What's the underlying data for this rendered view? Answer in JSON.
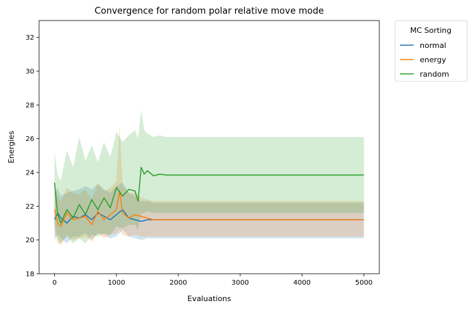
{
  "chart_data": {
    "type": "line",
    "title": "Convergence for random polar relative move mode",
    "xlabel": "Evaluations",
    "ylabel": "Energies",
    "xlim": [
      -250,
      5250
    ],
    "ylim": [
      18,
      33
    ],
    "xticks": [
      0,
      1000,
      2000,
      3000,
      4000,
      5000
    ],
    "yticks": [
      18,
      20,
      22,
      24,
      26,
      28,
      30,
      32
    ],
    "grid": false,
    "legend": {
      "title": "MC Sorting",
      "placement": "outside-top-right"
    },
    "series": [
      {
        "name": "normal",
        "color": "#1f77b4",
        "x": [
          0,
          50,
          100,
          200,
          300,
          400,
          500,
          600,
          700,
          800,
          900,
          1000,
          1100,
          1200,
          1300,
          1400,
          1500,
          1600,
          1800,
          2000,
          3000,
          4000,
          5000
        ],
        "values": [
          21.2,
          21.6,
          21.3,
          21.0,
          21.4,
          21.3,
          21.5,
          21.2,
          21.6,
          21.4,
          21.2,
          21.5,
          21.8,
          21.3,
          21.2,
          21.1,
          21.2,
          21.2,
          21.2,
          21.2,
          21.2,
          21.2,
          21.2
        ],
        "lower": [
          20.0,
          20.3,
          20.1,
          19.8,
          20.2,
          20.2,
          20.4,
          20.0,
          20.4,
          20.3,
          20.1,
          20.2,
          20.6,
          20.2,
          20.1,
          20.0,
          20.1,
          20.1,
          20.1,
          20.1,
          20.1,
          20.1,
          20.1
        ],
        "upper": [
          22.8,
          23.1,
          22.6,
          22.8,
          22.9,
          23.0,
          23.2,
          23.0,
          23.3,
          23.0,
          22.8,
          23.2,
          23.4,
          22.8,
          22.6,
          22.3,
          22.3,
          22.2,
          22.2,
          22.2,
          22.2,
          22.2,
          22.2
        ]
      },
      {
        "name": "energy",
        "color": "#ff7f0e",
        "x": [
          0,
          50,
          100,
          200,
          300,
          400,
          500,
          600,
          700,
          800,
          900,
          1000,
          1050,
          1100,
          1200,
          1300,
          1400,
          1500,
          1600,
          1800,
          2000,
          3000,
          4000,
          5000
        ],
        "values": [
          21.8,
          21.0,
          20.8,
          21.6,
          21.2,
          21.3,
          21.4,
          20.9,
          21.7,
          21.2,
          21.5,
          21.8,
          22.9,
          21.6,
          21.3,
          21.5,
          21.4,
          21.3,
          21.2,
          21.2,
          21.2,
          21.2,
          21.2,
          21.2
        ],
        "lower": [
          20.5,
          19.8,
          19.7,
          20.3,
          20.0,
          20.1,
          20.2,
          19.9,
          20.4,
          20.1,
          20.3,
          20.4,
          20.6,
          20.3,
          20.2,
          20.3,
          20.2,
          20.2,
          20.2,
          20.2,
          20.2,
          20.2,
          20.2,
          20.2
        ],
        "upper": [
          23.2,
          22.6,
          22.3,
          23.1,
          22.8,
          22.7,
          23.0,
          22.4,
          23.4,
          22.9,
          23.1,
          23.5,
          26.8,
          23.2,
          22.8,
          22.8,
          22.5,
          22.4,
          22.3,
          22.3,
          22.3,
          22.3,
          22.3,
          22.3
        ]
      },
      {
        "name": "random",
        "color": "#2ca02c",
        "x": [
          0,
          50,
          100,
          200,
          300,
          400,
          500,
          600,
          700,
          800,
          900,
          1000,
          1100,
          1200,
          1300,
          1350,
          1400,
          1450,
          1500,
          1600,
          1700,
          1800,
          2000,
          3000,
          4000,
          5000
        ],
        "values": [
          23.4,
          21.5,
          21.0,
          21.8,
          21.3,
          22.1,
          21.5,
          22.4,
          21.8,
          22.5,
          21.9,
          23.1,
          22.6,
          23.0,
          22.9,
          22.3,
          24.3,
          23.9,
          24.1,
          23.8,
          23.9,
          23.85,
          23.85,
          23.85,
          23.85,
          23.85
        ],
        "lower": [
          21.0,
          20.0,
          19.8,
          20.2,
          19.8,
          20.1,
          19.8,
          20.3,
          20.2,
          20.4,
          20.3,
          20.8,
          20.7,
          20.9,
          20.9,
          20.6,
          21.6,
          21.6,
          21.7,
          21.6,
          21.6,
          21.6,
          21.6,
          21.6,
          21.6,
          21.6
        ],
        "upper": [
          25.2,
          23.8,
          23.5,
          25.3,
          24.3,
          26.1,
          24.7,
          25.6,
          24.6,
          25.8,
          24.9,
          26.4,
          25.8,
          26.2,
          26.5,
          26.0,
          27.7,
          26.5,
          26.3,
          26.1,
          26.2,
          26.1,
          26.1,
          26.1,
          26.1,
          26.1
        ]
      }
    ]
  }
}
